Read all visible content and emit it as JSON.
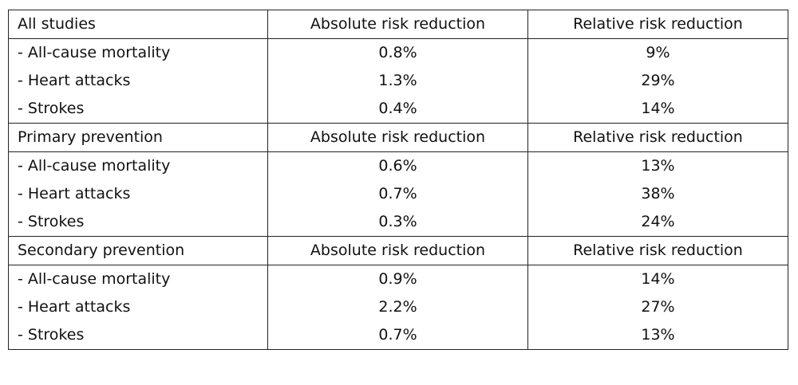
{
  "sections": [
    {
      "title": "All studies",
      "col2_header": "Absolute risk reduction",
      "col3_header": "Relative risk reduction",
      "rows": [
        {
          "label": "- All-cause mortality",
          "absolute": "0.8%",
          "relative": "9%"
        },
        {
          "label": "- Heart attacks",
          "absolute": "1.3%",
          "relative": "29%"
        },
        {
          "label": "- Strokes",
          "absolute": "0.4%",
          "relative": "14%"
        }
      ]
    },
    {
      "title": "Primary prevention",
      "col2_header": "Absolute risk reduction",
      "col3_header": "Relative risk reduction",
      "rows": [
        {
          "label": "- All-cause mortality",
          "absolute": "0.6%",
          "relative": "13%"
        },
        {
          "label": "- Heart attacks",
          "absolute": "0.7%",
          "relative": "38%"
        },
        {
          "label": "- Strokes",
          "absolute": "0.3%",
          "relative": "24%"
        }
      ]
    },
    {
      "title": "Secondary prevention",
      "col2_header": "Absolute risk reduction",
      "col3_header": "Relative risk reduction",
      "rows": [
        {
          "label": "- All-cause mortality",
          "absolute": "0.9%",
          "relative": "14%"
        },
        {
          "label": "- Heart attacks",
          "absolute": "2.2%",
          "relative": "27%"
        },
        {
          "label": "- Strokes",
          "absolute": "0.7%",
          "relative": "13%"
        }
      ]
    }
  ]
}
